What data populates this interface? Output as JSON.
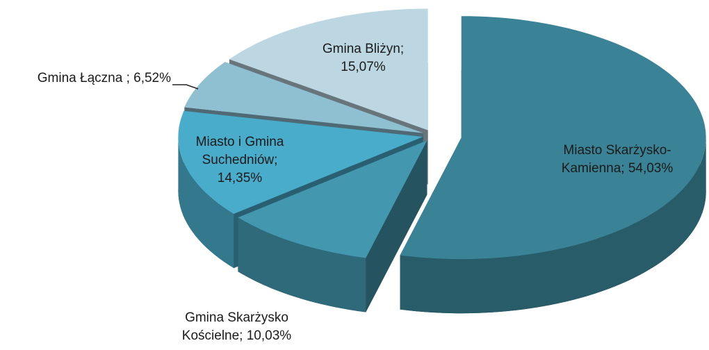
{
  "chart_data": {
    "type": "pie3d",
    "labels": [
      "Miasto Skarżysko-Kamienna; 54,03%",
      "Gmina Skarżysko Kościelne; 10,03%",
      "Miasto i Gmina Suchedniów; 14,35%",
      "Gmina Łączna ; 6,52%",
      "Gmina Bliżyn; 15,07%"
    ],
    "values": [
      54.03,
      10.03,
      14.35,
      6.52,
      15.07
    ],
    "colors": [
      "#3a8396",
      "#4397ae",
      "#4aaccb",
      "#8fc0d2",
      "#bdd7e2"
    ]
  }
}
